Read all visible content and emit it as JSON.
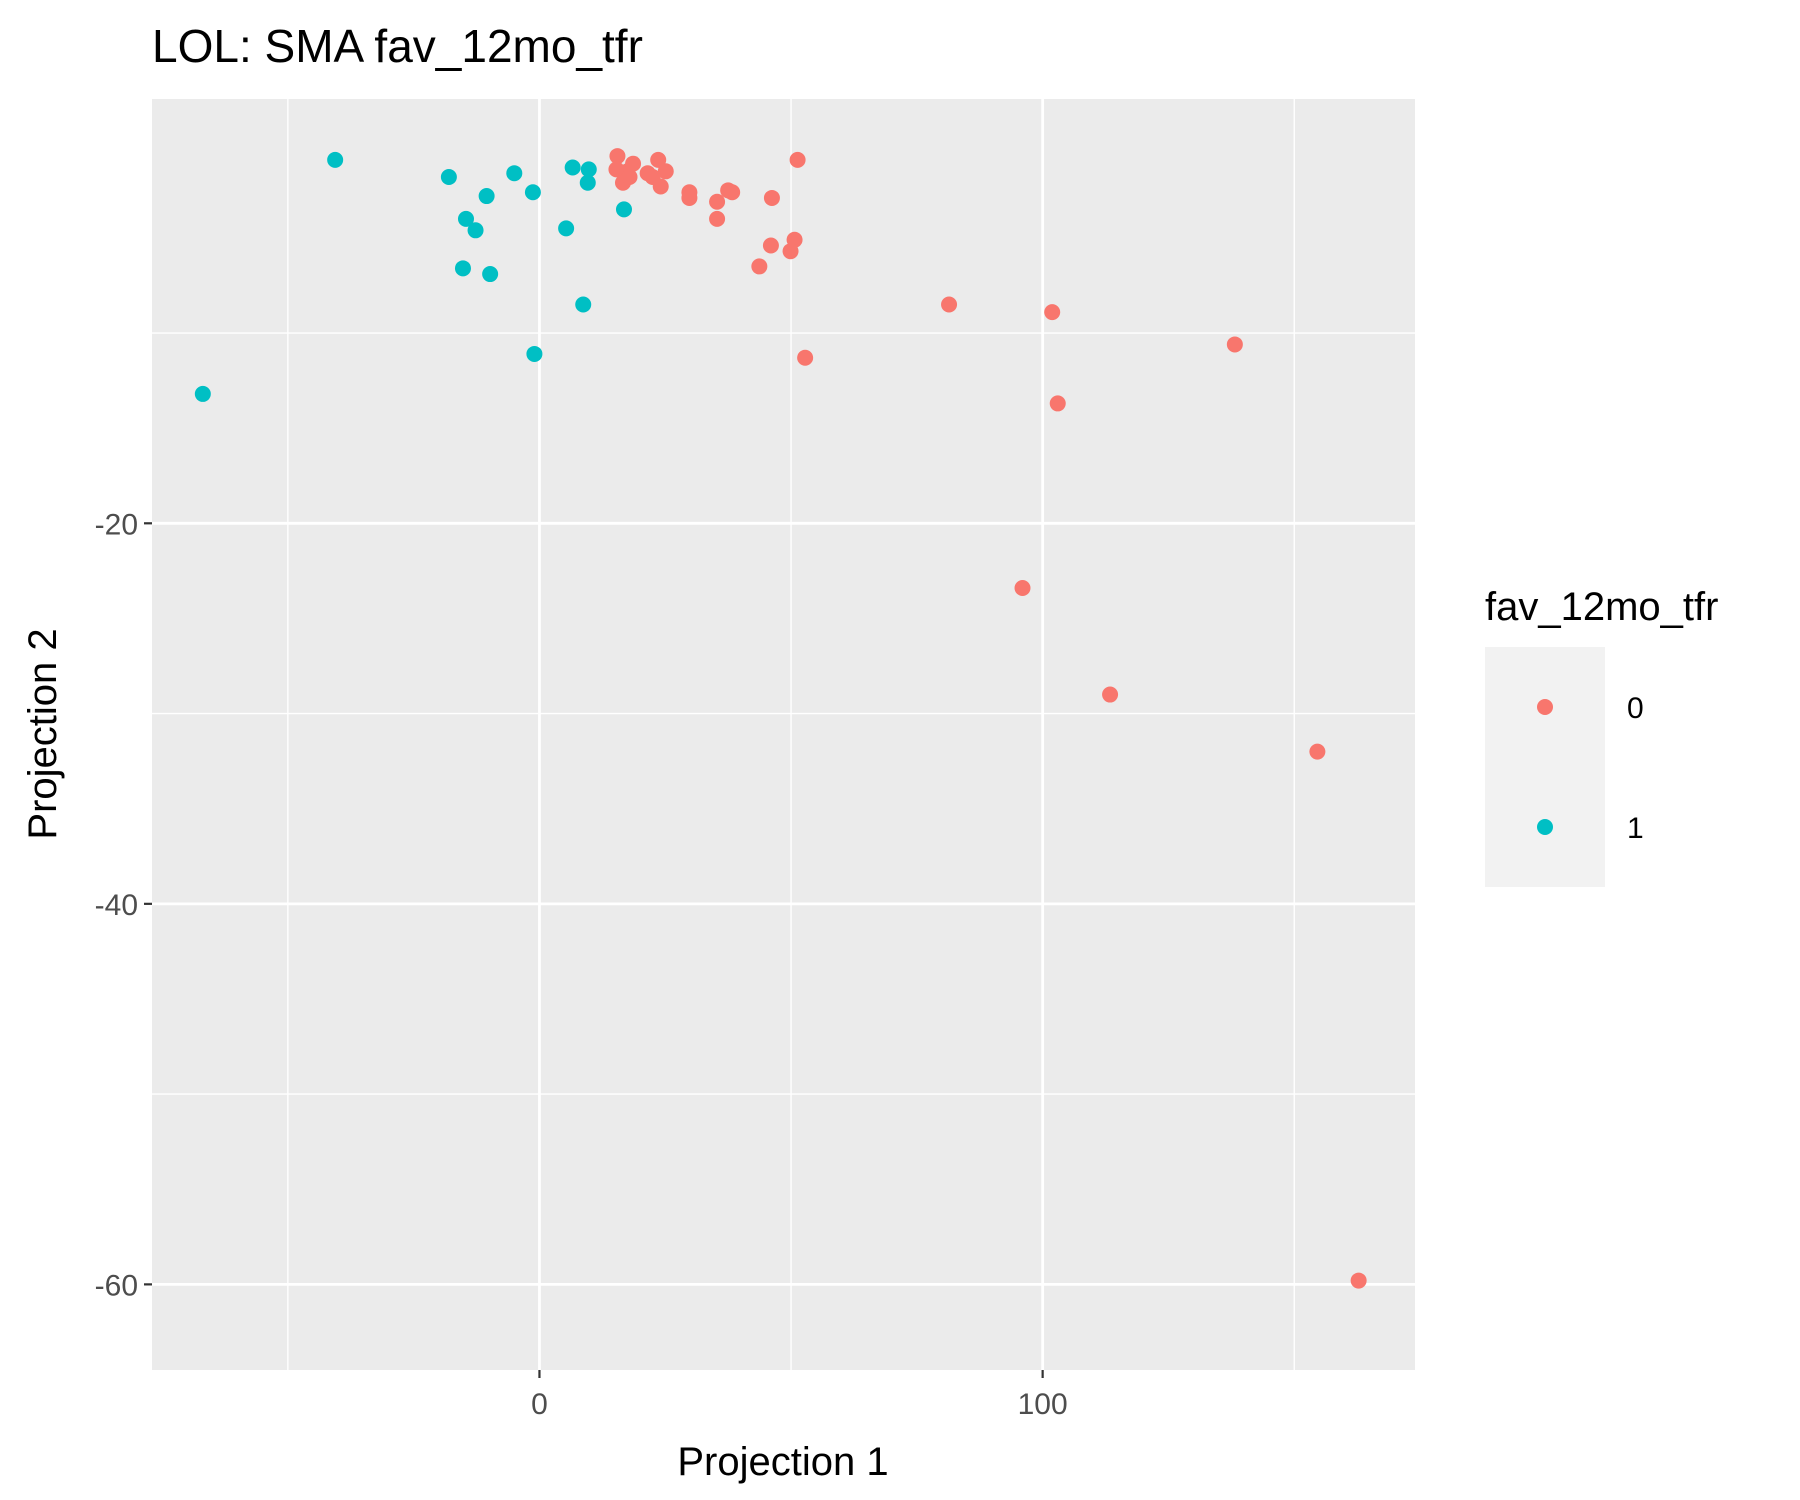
{
  "chart_data": {
    "type": "scatter",
    "title": "LOL: SMA fav_12mo_tfr",
    "xlabel": "Projection 1",
    "ylabel": "Projection 2",
    "xlim": [
      -77,
      174
    ],
    "ylim": [
      -64.5,
      2.3
    ],
    "x_ticks": [
      0,
      100
    ],
    "y_ticks": [
      -20,
      -40,
      -60
    ],
    "x_minor_ticks": [
      -50,
      50,
      150
    ],
    "y_minor_ticks": [
      -10,
      -30,
      -50
    ],
    "grid": true,
    "legend": {
      "title": "fav_12mo_tfr",
      "position": "right"
    },
    "series": [
      {
        "name": "0",
        "color": "#F8766D",
        "points": [
          [
            15.5,
            -0.7
          ],
          [
            15.3,
            -1.4
          ],
          [
            17.5,
            -1.5
          ],
          [
            18.6,
            -1.1
          ],
          [
            16.6,
            -2.1
          ],
          [
            17.9,
            -1.8
          ],
          [
            23.6,
            -0.9
          ],
          [
            21.5,
            -1.6
          ],
          [
            22.5,
            -1.8
          ],
          [
            25.1,
            -1.5
          ],
          [
            24.1,
            -2.3
          ],
          [
            29.8,
            -2.6
          ],
          [
            29.8,
            -2.9
          ],
          [
            37.5,
            -2.5
          ],
          [
            38.3,
            -2.6
          ],
          [
            35.3,
            -3.1
          ],
          [
            46.2,
            -2.9
          ],
          [
            51.3,
            -0.9
          ],
          [
            35.3,
            -4.0
          ],
          [
            46.0,
            -5.4
          ],
          [
            50.7,
            -5.1
          ],
          [
            49.9,
            -5.7
          ],
          [
            43.7,
            -6.5
          ],
          [
            81.4,
            -8.5
          ],
          [
            101.9,
            -8.9
          ],
          [
            52.8,
            -11.3
          ],
          [
            138.2,
            -10.6
          ],
          [
            103.0,
            -13.7
          ],
          [
            96.0,
            -23.4
          ],
          [
            113.4,
            -29.0
          ],
          [
            154.6,
            -32.0
          ],
          [
            162.8,
            -59.8
          ]
        ]
      },
      {
        "name": "1",
        "color": "#00BFC4",
        "points": [
          [
            -40.6,
            -0.9
          ],
          [
            -18.0,
            -1.8
          ],
          [
            -5.0,
            -1.6
          ],
          [
            6.6,
            -1.3
          ],
          [
            9.8,
            -1.4
          ],
          [
            -10.5,
            -2.8
          ],
          [
            -1.3,
            -2.6
          ],
          [
            9.6,
            -2.1
          ],
          [
            16.8,
            -3.5
          ],
          [
            -14.6,
            -4.0
          ],
          [
            -12.7,
            -4.6
          ],
          [
            5.3,
            -4.5
          ],
          [
            -15.2,
            -6.6
          ],
          [
            -9.8,
            -6.9
          ],
          [
            8.7,
            -8.5
          ],
          [
            -1.0,
            -11.1
          ],
          [
            -66.9,
            -13.2
          ]
        ]
      }
    ]
  }
}
